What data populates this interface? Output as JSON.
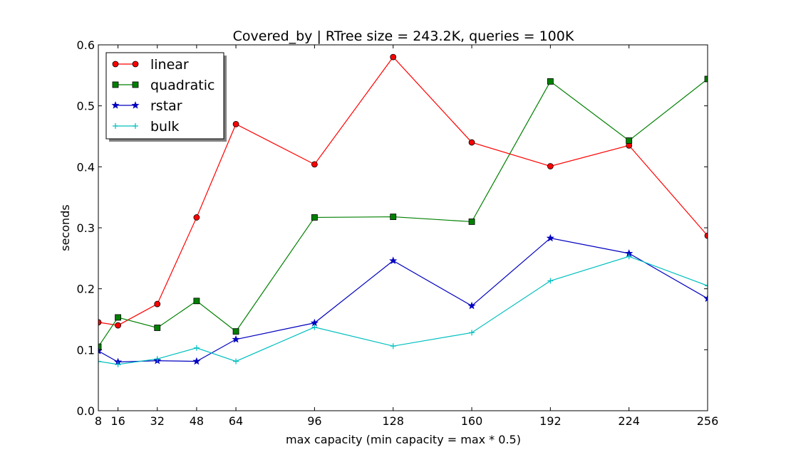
{
  "chart_data": {
    "type": "line",
    "title": "Covered_by | RTree size = 243.2K, queries = 100K",
    "xlabel": "max capacity (min capacity = max * 0.5)",
    "ylabel": "seconds",
    "x": [
      8,
      16,
      32,
      48,
      64,
      96,
      128,
      160,
      192,
      224,
      256
    ],
    "x_ticks": [
      "8",
      "16",
      "32",
      "48",
      "64",
      "96",
      "128",
      "160",
      "192",
      "224",
      "256"
    ],
    "xlim": [
      8,
      256
    ],
    "ylim": [
      0,
      0.6
    ],
    "y_ticks": [
      "0.0",
      "0.1",
      "0.2",
      "0.3",
      "0.4",
      "0.5",
      "0.6"
    ],
    "y_tick_values": [
      0,
      0.1,
      0.2,
      0.3,
      0.4,
      0.5,
      0.6
    ],
    "grid": false,
    "legend_position": "top-left",
    "series": [
      {
        "name": "linear",
        "color": "#ff0000",
        "marker": "circle",
        "values": [
          0.145,
          0.14,
          0.175,
          0.317,
          0.47,
          0.404,
          0.58,
          0.44,
          0.401,
          0.435,
          0.287
        ]
      },
      {
        "name": "quadratic",
        "color": "#008000",
        "marker": "square",
        "values": [
          0.105,
          0.153,
          0.136,
          0.18,
          0.13,
          0.317,
          0.318,
          0.31,
          0.54,
          0.443,
          0.544
        ]
      },
      {
        "name": "rstar",
        "color": "#0000bf",
        "marker": "star",
        "values": [
          0.098,
          0.08,
          0.082,
          0.081,
          0.117,
          0.144,
          0.246,
          0.172,
          0.283,
          0.258,
          0.184
        ]
      },
      {
        "name": "bulk",
        "color": "#00bfbf",
        "marker": "plus",
        "values": [
          0.081,
          0.076,
          0.085,
          0.103,
          0.081,
          0.137,
          0.106,
          0.128,
          0.213,
          0.253,
          0.205
        ]
      }
    ]
  }
}
